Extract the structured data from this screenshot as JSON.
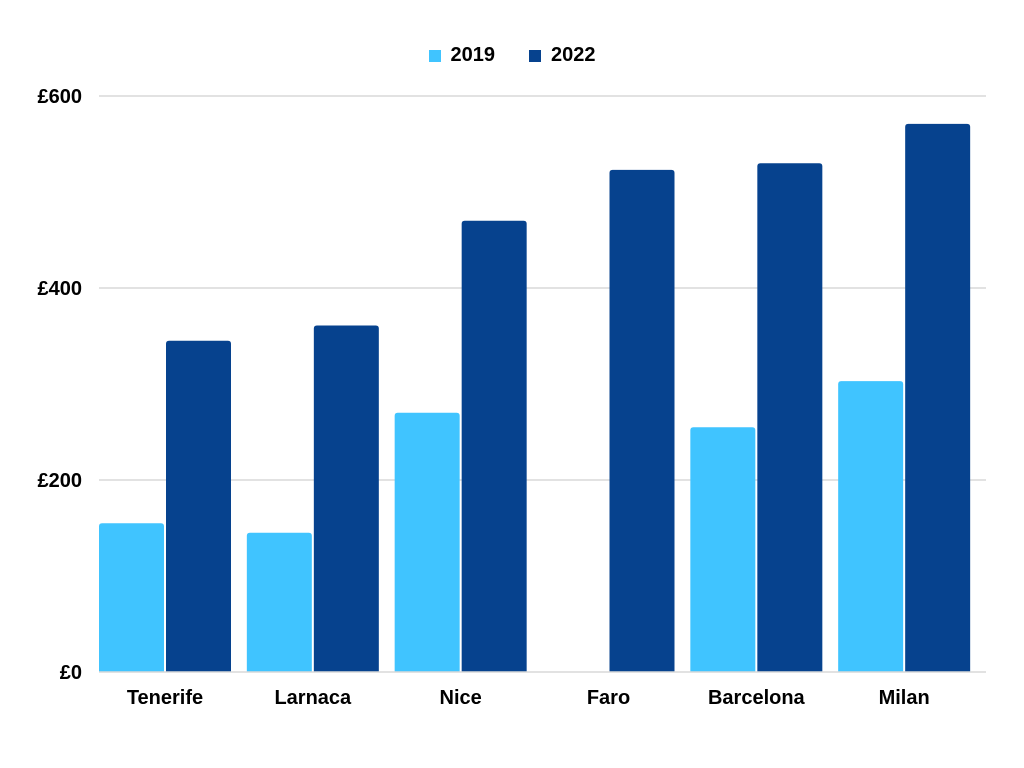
{
  "chart_data": {
    "type": "bar",
    "categories": [
      "Tenerife",
      "Larnaca",
      "Nice",
      "Faro",
      "Barcelona",
      "Milan"
    ],
    "series": [
      {
        "name": "2019",
        "color": "#40C4FF",
        "values": [
          155,
          145,
          270,
          null,
          255,
          303
        ]
      },
      {
        "name": "2022",
        "color": "#06428E",
        "values": [
          345,
          361,
          470,
          523,
          530,
          571
        ]
      }
    ],
    "yticks": [
      {
        "value": 0,
        "label": "£0"
      },
      {
        "value": 200,
        "label": "£200"
      },
      {
        "value": 400,
        "label": "£400"
      },
      {
        "value": 600,
        "label": "£600"
      }
    ],
    "ylim": [
      0,
      600
    ],
    "grid": true,
    "legend_position": "top-center",
    "gridline_color": "#D9D9D9"
  }
}
